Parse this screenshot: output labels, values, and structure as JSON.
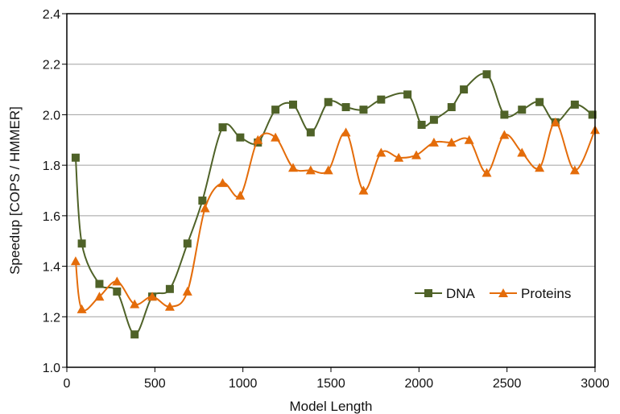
{
  "chart_data": {
    "type": "line",
    "title": "",
    "xlabel": "Model Length",
    "ylabel": "Speedup  [COPS / HMMER]",
    "xlim": [
      0,
      3000
    ],
    "ylim": [
      1.0,
      2.4
    ],
    "x_ticks": [
      "0",
      "500",
      "1000",
      "1500",
      "2000",
      "2500",
      "3000"
    ],
    "y_ticks": [
      "1.0",
      "1.2",
      "1.4",
      "1.6",
      "1.8",
      "2.0",
      "2.2",
      "2.4"
    ],
    "x_tick_values": [
      0,
      500,
      1000,
      1500,
      2000,
      2500,
      3000
    ],
    "y_tick_values": [
      1.0,
      1.2,
      1.4,
      1.6,
      1.8,
      2.0,
      2.2,
      2.4
    ],
    "grid": "horizontal",
    "legend_position": "bottom-right",
    "series": [
      {
        "name": "DNA",
        "color": "#4f6228",
        "marker": "square",
        "x": [
          50,
          85,
          185,
          285,
          385,
          485,
          585,
          685,
          770,
          885,
          985,
          1085,
          1185,
          1285,
          1385,
          1485,
          1585,
          1685,
          1785,
          1935,
          2015,
          2085,
          2185,
          2255,
          2385,
          2485,
          2585,
          2685,
          2775,
          2885,
          2985
        ],
        "y": [
          1.83,
          1.49,
          1.33,
          1.3,
          1.13,
          1.28,
          1.31,
          1.49,
          1.66,
          1.95,
          1.91,
          1.89,
          2.02,
          2.04,
          1.93,
          2.05,
          2.03,
          2.02,
          2.06,
          2.08,
          1.96,
          1.98,
          2.03,
          2.1,
          2.16,
          2.0,
          2.02,
          2.05,
          1.97,
          2.04,
          2.0
        ]
      },
      {
        "name": "Proteins",
        "color": "#e46c0a",
        "marker": "triangle",
        "x": [
          50,
          85,
          185,
          285,
          385,
          485,
          585,
          685,
          785,
          885,
          985,
          1085,
          1185,
          1285,
          1385,
          1485,
          1585,
          1685,
          1785,
          1885,
          1985,
          2085,
          2185,
          2285,
          2385,
          2485,
          2585,
          2685,
          2775,
          2885,
          3000
        ],
        "y": [
          1.42,
          1.23,
          1.28,
          1.34,
          1.25,
          1.28,
          1.24,
          1.3,
          1.63,
          1.73,
          1.68,
          1.9,
          1.91,
          1.79,
          1.78,
          1.78,
          1.93,
          1.7,
          1.85,
          1.83,
          1.84,
          1.89,
          1.89,
          1.9,
          1.77,
          1.92,
          1.85,
          1.79,
          1.97,
          1.78,
          1.94
        ]
      }
    ]
  }
}
